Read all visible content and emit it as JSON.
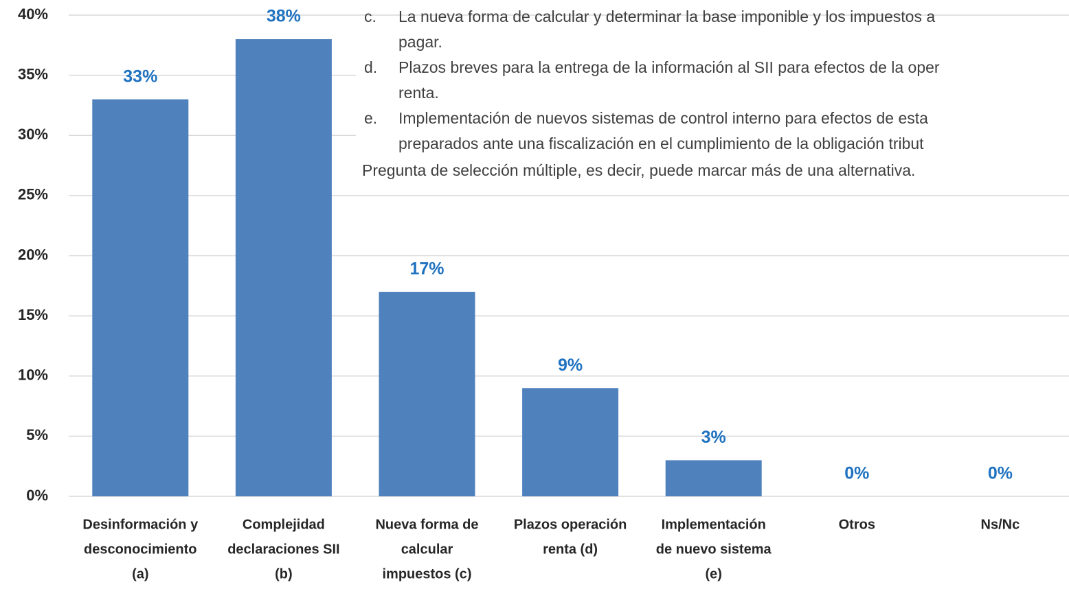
{
  "chart_data": {
    "type": "bar",
    "categories": [
      [
        "Desinformación y",
        "desconocimiento",
        "(a)"
      ],
      [
        "Complejidad",
        "declaraciones SII",
        "(b)"
      ],
      [
        "Nueva forma de",
        "calcular",
        "impuestos (c)"
      ],
      [
        "Plazos operación",
        "renta (d)"
      ],
      [
        "Implementación",
        "de nuevo sistema",
        "(e)"
      ],
      [
        "Otros"
      ],
      [
        "Ns/Nc"
      ]
    ],
    "values": [
      33,
      38,
      17,
      9,
      3,
      0,
      0
    ],
    "value_labels": [
      "33%",
      "38%",
      "17%",
      "9%",
      "3%",
      "0%",
      "0%"
    ],
    "color": "#4f81bd",
    "ylim": [
      0,
      40
    ],
    "yticks": [
      {
        "value": 0,
        "label": "0%"
      },
      {
        "value": 5,
        "label": "5%"
      },
      {
        "value": 10,
        "label": "10%"
      },
      {
        "value": 15,
        "label": "15%"
      },
      {
        "value": 20,
        "label": "20%"
      },
      {
        "value": 25,
        "label": "25%"
      },
      {
        "value": 30,
        "label": "30%"
      },
      {
        "value": 35,
        "label": "35%"
      },
      {
        "value": 40,
        "label": "40%"
      }
    ],
    "grid": true,
    "annotations": [
      {
        "marker": "c.",
        "lines": [
          "La nueva forma de calcular y determinar la base imponible y los impuestos a",
          "pagar."
        ]
      },
      {
        "marker": "d.",
        "lines": [
          "Plazos breves para la entrega de la información al SII para efectos de la oper",
          "renta."
        ]
      },
      {
        "marker": "e.",
        "lines": [
          "Implementación de nuevos sistemas de control interno para efectos de esta",
          "preparados ante una fiscalización en el cumplimiento de la obligación tribut"
        ]
      }
    ],
    "note": "Pregunta de selección múltiple, es decir, puede marcar más de una alternativa."
  }
}
